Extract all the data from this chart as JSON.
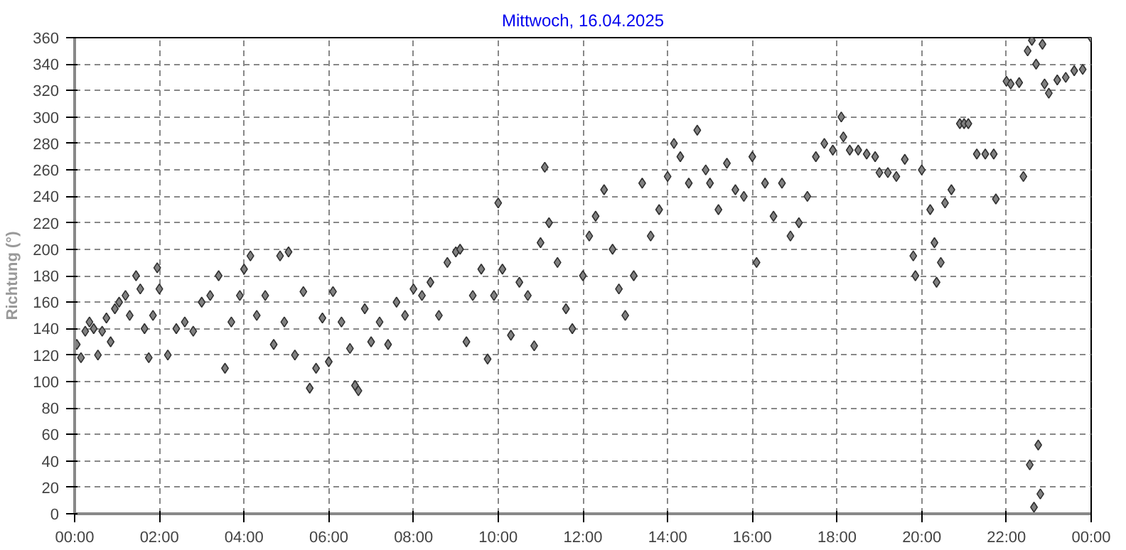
{
  "chart_data": {
    "type": "scatter",
    "title": "Mittwoch, 16.04.2025",
    "ylabel": "Richtung (°)",
    "xlim": [
      0,
      24
    ],
    "ylim": [
      0,
      360
    ],
    "xticks": [
      {
        "value": 0,
        "label": "00:00"
      },
      {
        "value": 2,
        "label": "02:00"
      },
      {
        "value": 4,
        "label": "04:00"
      },
      {
        "value": 6,
        "label": "06:00"
      },
      {
        "value": 8,
        "label": "08:00"
      },
      {
        "value": 10,
        "label": "10:00"
      },
      {
        "value": 12,
        "label": "12:00"
      },
      {
        "value": 14,
        "label": "14:00"
      },
      {
        "value": 16,
        "label": "16:00"
      },
      {
        "value": 18,
        "label": "18:00"
      },
      {
        "value": 20,
        "label": "20:00"
      },
      {
        "value": 22,
        "label": "22:00"
      },
      {
        "value": 24,
        "label": "00:00"
      }
    ],
    "yticks": [
      0,
      20,
      40,
      60,
      80,
      100,
      120,
      140,
      160,
      180,
      200,
      220,
      240,
      260,
      280,
      300,
      320,
      340,
      360
    ],
    "grid": true,
    "marker": "diamond",
    "series": [
      {
        "color": "#808080",
        "x": [
          0.05,
          0.15,
          0.25,
          0.35,
          0.45,
          0.55,
          0.65,
          0.75,
          0.85,
          0.95,
          1.05,
          1.2,
          1.3,
          1.45,
          1.55,
          1.65,
          1.75,
          1.85,
          1.95,
          2.0,
          2.2,
          2.4,
          2.6,
          2.8,
          3.0,
          3.2,
          3.4,
          3.55,
          3.7,
          3.9,
          4.0,
          4.15,
          4.3,
          4.5,
          4.7,
          4.85,
          4.95,
          5.05,
          5.2,
          5.4,
          5.55,
          5.7,
          5.85,
          6.0,
          6.1,
          6.3,
          6.5,
          6.62,
          6.7,
          6.85,
          7.0,
          7.2,
          7.4,
          7.6,
          7.8,
          8.0,
          8.2,
          8.4,
          8.6,
          8.8,
          9.0,
          9.1,
          9.25,
          9.4,
          9.6,
          9.75,
          9.9,
          10.0,
          10.1,
          10.3,
          10.5,
          10.7,
          10.85,
          11.0,
          11.1,
          11.2,
          11.4,
          11.6,
          11.75,
          12.0,
          12.15,
          12.3,
          12.5,
          12.7,
          12.85,
          13.0,
          13.2,
          13.4,
          13.6,
          13.8,
          14.0,
          14.15,
          14.3,
          14.5,
          14.7,
          14.9,
          15.0,
          15.2,
          15.4,
          15.6,
          15.8,
          16.0,
          16.1,
          16.3,
          16.5,
          16.7,
          16.9,
          17.1,
          17.3,
          17.5,
          17.7,
          17.9,
          18.1,
          18.15,
          18.3,
          18.5,
          18.7,
          18.9,
          19.0,
          19.2,
          19.4,
          19.6,
          19.8,
          19.85,
          20.0,
          20.2,
          20.3,
          20.35,
          20.45,
          20.55,
          20.7,
          20.9,
          21.0,
          21.1,
          21.3,
          21.5,
          21.7,
          21.75,
          22.0,
          22.1,
          22.3,
          22.4,
          22.5,
          22.55,
          22.6,
          22.65,
          22.7,
          22.75,
          22.8,
          22.85,
          22.9,
          23.0,
          23.2,
          23.4,
          23.6,
          23.8,
          24.0
        ],
        "values": [
          128,
          118,
          138,
          145,
          140,
          120,
          138,
          148,
          130,
          155,
          160,
          165,
          150,
          180,
          170,
          140,
          118,
          150,
          186,
          170,
          120,
          140,
          145,
          138,
          160,
          165,
          180,
          110,
          145,
          165,
          185,
          195,
          150,
          165,
          128,
          195,
          145,
          198,
          120,
          168,
          95,
          110,
          148,
          115,
          168,
          145,
          125,
          97,
          93,
          155,
          130,
          145,
          128,
          160,
          150,
          170,
          165,
          175,
          150,
          190,
          198,
          200,
          130,
          165,
          185,
          117,
          165,
          235,
          185,
          135,
          175,
          165,
          127,
          205,
          262,
          220,
          190,
          155,
          140,
          180,
          210,
          225,
          245,
          200,
          170,
          150,
          180,
          250,
          210,
          230,
          255,
          280,
          270,
          250,
          290,
          260,
          250,
          230,
          265,
          245,
          240,
          270,
          190,
          250,
          225,
          250,
          210,
          220,
          240,
          270,
          280,
          275,
          300,
          285,
          275,
          275,
          272,
          270,
          258,
          258,
          255,
          268,
          195,
          180,
          260,
          230,
          205,
          175,
          190,
          235,
          245,
          295,
          295,
          295,
          272,
          272,
          272,
          238,
          327,
          325,
          326,
          255,
          350,
          37,
          358,
          5,
          340,
          52,
          15,
          355,
          325,
          318,
          328,
          330,
          335,
          336,
          360
        ]
      }
    ]
  }
}
